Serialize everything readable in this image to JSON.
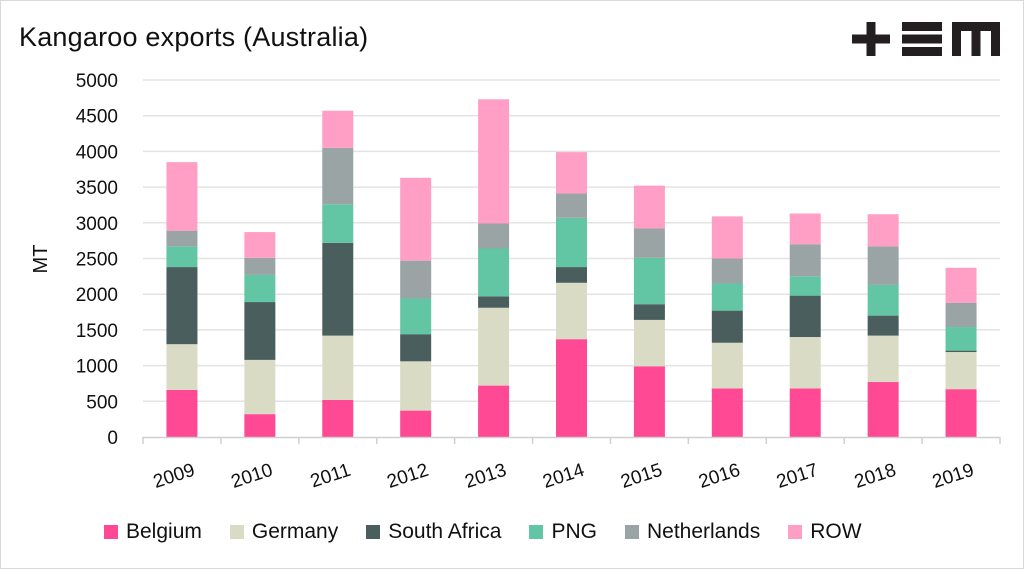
{
  "chart_data": {
    "type": "bar",
    "stacked": true,
    "title": "Kangaroo exports (Australia)",
    "xlabel": "",
    "ylabel": "MT",
    "ylim": [
      0,
      5000
    ],
    "yticks": [
      0,
      500,
      1000,
      1500,
      2000,
      2500,
      3000,
      3500,
      4000,
      4500,
      5000
    ],
    "ytick_labels": [
      "0",
      "500",
      "1000",
      "1500",
      "2000",
      "2500",
      "3000",
      "3500",
      "4000",
      "4500",
      "5000"
    ],
    "grid": true,
    "legend_position": "bottom",
    "categories": [
      "2009",
      "2010",
      "2011",
      "2012",
      "2013",
      "2014",
      "2015",
      "2016",
      "2017",
      "2018",
      "2019"
    ],
    "series": [
      {
        "name": "Belgium",
        "color": "#ff4994",
        "values": [
          660,
          320,
          520,
          370,
          720,
          1370,
          990,
          680,
          680,
          770,
          670
        ]
      },
      {
        "name": "Germany",
        "color": "#d9dbc5",
        "values": [
          640,
          760,
          900,
          690,
          1090,
          790,
          650,
          640,
          720,
          650,
          520
        ]
      },
      {
        "name": "South Africa",
        "color": "#4a5e5e",
        "values": [
          1080,
          810,
          1300,
          380,
          160,
          220,
          220,
          450,
          580,
          280,
          20
        ]
      },
      {
        "name": "PNG",
        "color": "#62c5a4",
        "values": [
          290,
          380,
          540,
          500,
          670,
          690,
          650,
          380,
          270,
          430,
          330
        ]
      },
      {
        "name": "Netherlands",
        "color": "#9aa4a4",
        "values": [
          220,
          240,
          790,
          530,
          350,
          340,
          410,
          350,
          450,
          540,
          340
        ]
      },
      {
        "name": "ROW",
        "color": "#ff9fc6",
        "values": [
          960,
          360,
          520,
          1160,
          1740,
          580,
          600,
          590,
          430,
          450,
          490
        ]
      }
    ]
  },
  "branding": {
    "logo_text": "+EM"
  },
  "colors": {
    "gridline": "#e3e3e3",
    "axis": "#d0d0d0",
    "text": "#111111"
  }
}
